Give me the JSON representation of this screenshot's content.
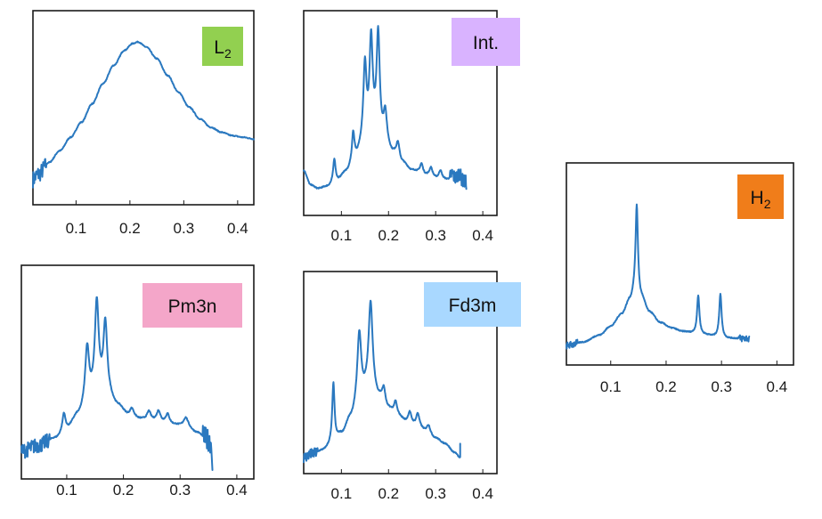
{
  "chart_data": [
    {
      "id": "L2",
      "type": "line",
      "label": "L",
      "label_sub": "2",
      "label_color": "#92d050",
      "line_color": "#2a78bf",
      "xlim": [
        0.02,
        0.43
      ],
      "xticks": [
        0.1,
        0.2,
        0.3,
        0.4
      ],
      "tick_labels": [
        "0.1",
        "0.2",
        "0.3",
        "0.4"
      ],
      "ylim": [
        0,
        1
      ],
      "baseline": [
        [
          0.02,
          0.1
        ],
        [
          0.03,
          0.13
        ],
        [
          0.05,
          0.2
        ],
        [
          0.07,
          0.27
        ],
        [
          0.09,
          0.35
        ],
        [
          0.11,
          0.44
        ],
        [
          0.13,
          0.55
        ],
        [
          0.15,
          0.67
        ],
        [
          0.17,
          0.78
        ],
        [
          0.19,
          0.87
        ],
        [
          0.205,
          0.91
        ],
        [
          0.215,
          0.92
        ],
        [
          0.23,
          0.89
        ],
        [
          0.25,
          0.82
        ],
        [
          0.27,
          0.72
        ],
        [
          0.29,
          0.62
        ],
        [
          0.31,
          0.53
        ],
        [
          0.33,
          0.46
        ],
        [
          0.35,
          0.41
        ],
        [
          0.37,
          0.38
        ],
        [
          0.39,
          0.36
        ],
        [
          0.41,
          0.35
        ],
        [
          0.43,
          0.34
        ]
      ],
      "peaks": [],
      "noise": {
        "start": 0.02,
        "end": 0.045,
        "amp": 0.05
      }
    },
    {
      "id": "Int",
      "type": "line",
      "label": "Int.",
      "label_sub": "",
      "label_color": "#d9b3ff",
      "line_color": "#2a78bf",
      "xlim": [
        0.02,
        0.43
      ],
      "xticks": [
        0.1,
        0.2,
        0.3,
        0.4
      ],
      "tick_labels": [
        "0.1",
        "0.2",
        "0.3",
        "0.4"
      ],
      "ylim": [
        0,
        1
      ],
      "baseline": [
        [
          0.02,
          0.2
        ],
        [
          0.035,
          0.12
        ],
        [
          0.05,
          0.1
        ],
        [
          0.07,
          0.11
        ],
        [
          0.09,
          0.14
        ],
        [
          0.11,
          0.19
        ],
        [
          0.13,
          0.27
        ],
        [
          0.15,
          0.36
        ],
        [
          0.17,
          0.4
        ],
        [
          0.19,
          0.36
        ],
        [
          0.21,
          0.29
        ],
        [
          0.23,
          0.24
        ],
        [
          0.25,
          0.2
        ],
        [
          0.28,
          0.17
        ],
        [
          0.31,
          0.15
        ],
        [
          0.34,
          0.14
        ],
        [
          0.365,
          0.13
        ]
      ],
      "peaks": [
        [
          0.085,
          0.13,
          0.003
        ],
        [
          0.125,
          0.15,
          0.003
        ],
        [
          0.15,
          0.42,
          0.004
        ],
        [
          0.163,
          0.53,
          0.004
        ],
        [
          0.178,
          0.57,
          0.004
        ],
        [
          0.193,
          0.16,
          0.004
        ],
        [
          0.22,
          0.09,
          0.004
        ],
        [
          0.27,
          0.06,
          0.004
        ],
        [
          0.29,
          0.05,
          0.004
        ],
        [
          0.31,
          0.05,
          0.004
        ],
        [
          0.335,
          0.04,
          0.004
        ],
        [
          0.35,
          0.05,
          0.004
        ]
      ],
      "noise": {
        "start": 0.33,
        "end": 0.365,
        "amp": 0.04
      }
    },
    {
      "id": "Pm3n",
      "type": "line",
      "label": "Pm3n",
      "label_sub": "",
      "label_color": "#f4a6c9",
      "line_color": "#2a78bf",
      "xlim": [
        0.02,
        0.43
      ],
      "xticks": [
        0.1,
        0.2,
        0.3,
        0.4
      ],
      "tick_labels": [
        "0.1",
        "0.2",
        "0.3",
        "0.4"
      ],
      "ylim": [
        0,
        1
      ],
      "baseline": [
        [
          0.02,
          0.1
        ],
        [
          0.05,
          0.13
        ],
        [
          0.08,
          0.17
        ],
        [
          0.1,
          0.22
        ],
        [
          0.12,
          0.29
        ],
        [
          0.14,
          0.38
        ],
        [
          0.155,
          0.42
        ],
        [
          0.17,
          0.4
        ],
        [
          0.19,
          0.34
        ],
        [
          0.21,
          0.29
        ],
        [
          0.23,
          0.27
        ],
        [
          0.25,
          0.26
        ],
        [
          0.27,
          0.25
        ],
        [
          0.29,
          0.24
        ],
        [
          0.31,
          0.23
        ],
        [
          0.33,
          0.2
        ],
        [
          0.35,
          0.16
        ],
        [
          0.355,
          0.14
        ]
      ],
      "peaks": [
        [
          0.095,
          0.09,
          0.003
        ],
        [
          0.136,
          0.28,
          0.004
        ],
        [
          0.153,
          0.47,
          0.004
        ],
        [
          0.168,
          0.38,
          0.004
        ],
        [
          0.215,
          0.04,
          0.004
        ],
        [
          0.245,
          0.05,
          0.004
        ],
        [
          0.262,
          0.06,
          0.004
        ],
        [
          0.278,
          0.05,
          0.004
        ],
        [
          0.31,
          0.05,
          0.005
        ]
      ],
      "noise": {
        "start": 0.02,
        "end": 0.07,
        "amp": 0.04
      },
      "noise2": {
        "start": 0.34,
        "end": 0.357,
        "amp": 0.06
      },
      "tail_drop": [
        0.357,
        0.0
      ]
    },
    {
      "id": "Fd3m",
      "type": "line",
      "label": "Fd3m",
      "label_sub": "",
      "label_color": "#a9d8ff",
      "line_color": "#2a78bf",
      "xlim": [
        0.02,
        0.43
      ],
      "xticks": [
        0.1,
        0.2,
        0.3,
        0.4
      ],
      "tick_labels": [
        "0.1",
        "0.2",
        "0.3",
        "0.4"
      ],
      "ylim": [
        0,
        1
      ],
      "baseline": [
        [
          0.02,
          0.04
        ],
        [
          0.04,
          0.06
        ],
        [
          0.06,
          0.08
        ],
        [
          0.08,
          0.11
        ],
        [
          0.1,
          0.17
        ],
        [
          0.12,
          0.26
        ],
        [
          0.14,
          0.37
        ],
        [
          0.16,
          0.43
        ],
        [
          0.18,
          0.37
        ],
        [
          0.2,
          0.31
        ],
        [
          0.22,
          0.27
        ],
        [
          0.24,
          0.24
        ],
        [
          0.26,
          0.22
        ],
        [
          0.28,
          0.19
        ],
        [
          0.3,
          0.15
        ],
        [
          0.32,
          0.12
        ],
        [
          0.34,
          0.07
        ],
        [
          0.352,
          0.04
        ]
      ],
      "peaks": [
        [
          0.083,
          0.35,
          0.003
        ],
        [
          0.138,
          0.38,
          0.005
        ],
        [
          0.162,
          0.49,
          0.005
        ],
        [
          0.19,
          0.09,
          0.004
        ],
        [
          0.215,
          0.08,
          0.004
        ],
        [
          0.245,
          0.06,
          0.004
        ],
        [
          0.262,
          0.07,
          0.004
        ],
        [
          0.285,
          0.04,
          0.004
        ]
      ],
      "noise": {
        "start": 0.02,
        "end": 0.05,
        "amp": 0.03
      },
      "tail_spike": [
        0.352,
        0.12
      ]
    },
    {
      "id": "H2",
      "type": "line",
      "label": "H",
      "label_sub": "2",
      "label_color": "#f07d1a",
      "line_color": "#2a78bf",
      "xlim": [
        0.02,
        0.43
      ],
      "xticks": [
        0.1,
        0.2,
        0.3,
        0.4
      ],
      "tick_labels": [
        "0.1",
        "0.2",
        "0.3",
        "0.4"
      ],
      "ylim": [
        0,
        1
      ],
      "baseline": [
        [
          0.02,
          0.06
        ],
        [
          0.05,
          0.08
        ],
        [
          0.08,
          0.12
        ],
        [
          0.1,
          0.17
        ],
        [
          0.12,
          0.24
        ],
        [
          0.135,
          0.32
        ],
        [
          0.145,
          0.38
        ],
        [
          0.155,
          0.33
        ],
        [
          0.17,
          0.25
        ],
        [
          0.19,
          0.19
        ],
        [
          0.21,
          0.16
        ],
        [
          0.23,
          0.14
        ],
        [
          0.25,
          0.13
        ],
        [
          0.27,
          0.12
        ],
        [
          0.29,
          0.11
        ],
        [
          0.31,
          0.1
        ],
        [
          0.33,
          0.1
        ],
        [
          0.35,
          0.1
        ]
      ],
      "peaks": [
        [
          0.147,
          0.49,
          0.0025
        ],
        [
          0.258,
          0.22,
          0.0025
        ],
        [
          0.298,
          0.25,
          0.0025
        ]
      ],
      "noise": {
        "start": 0.02,
        "end": 0.04,
        "amp": 0.02
      },
      "noise2": {
        "start": 0.33,
        "end": 0.35,
        "amp": 0.02
      }
    }
  ]
}
